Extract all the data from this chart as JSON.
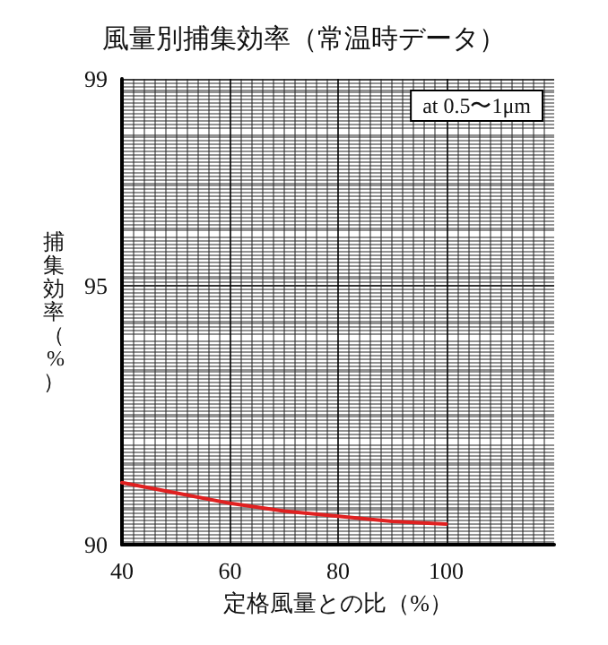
{
  "chart_data": {
    "type": "line",
    "title": "風量別捕集効率（常温時データ）",
    "xlabel": "定格風量との比（%）",
    "ylabel": "捕集効率（%）",
    "annotations": [
      "at 0.5〜1μm"
    ],
    "x": [
      40,
      50,
      60,
      70,
      80,
      90,
      100
    ],
    "series": [
      {
        "color": "#e02020",
        "values": [
          91.2,
          91.0,
          90.8,
          90.65,
          90.55,
          90.45,
          90.4
        ]
      }
    ],
    "xlim": [
      40,
      120
    ],
    "xticks": [
      40,
      60,
      80,
      100
    ],
    "ylim": [
      90,
      99
    ],
    "yticks": [
      90,
      95,
      99
    ],
    "grid": true,
    "marker": "none",
    "line_style": "solid"
  }
}
